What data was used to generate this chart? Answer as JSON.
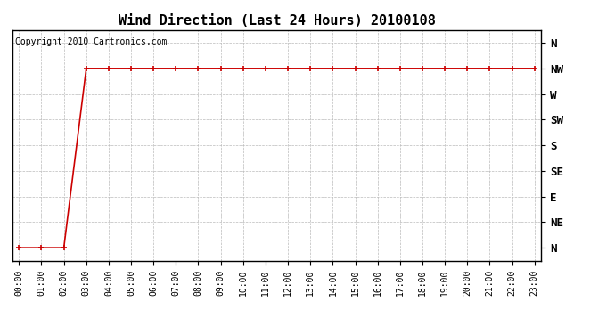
{
  "title": "Wind Direction (Last 24 Hours) 20100108",
  "copyright_text": "Copyright 2010 Cartronics.com",
  "line_color": "#cc0000",
  "background_color": "#ffffff",
  "plot_bg_color": "#ffffff",
  "grid_color": "#bbbbbb",
  "x_hours": [
    0,
    1,
    2,
    3,
    4,
    5,
    6,
    7,
    8,
    9,
    10,
    11,
    12,
    13,
    14,
    15,
    16,
    17,
    18,
    19,
    20,
    21,
    22,
    23
  ],
  "y_values": [
    0,
    0,
    0,
    7,
    7,
    7,
    7,
    7,
    7,
    7,
    7,
    7,
    7,
    7,
    7,
    7,
    7,
    7,
    7,
    7,
    7,
    7,
    7,
    7
  ],
  "y_ticks": [
    0,
    1,
    2,
    3,
    4,
    5,
    6,
    7,
    8
  ],
  "y_labels": [
    "N",
    "NE",
    "E",
    "SE",
    "S",
    "SW",
    "W",
    "NW",
    "N"
  ],
  "x_tick_labels": [
    "00:00",
    "01:00",
    "02:00",
    "03:00",
    "04:00",
    "05:00",
    "06:00",
    "07:00",
    "08:00",
    "09:00",
    "10:00",
    "11:00",
    "12:00",
    "13:00",
    "14:00",
    "15:00",
    "16:00",
    "17:00",
    "18:00",
    "19:00",
    "20:00",
    "21:00",
    "22:00",
    "23:00"
  ],
  "title_fontsize": 11,
  "tick_fontsize": 7,
  "copyright_fontsize": 7,
  "figsize": [
    6.9,
    3.75
  ],
  "dpi": 100
}
